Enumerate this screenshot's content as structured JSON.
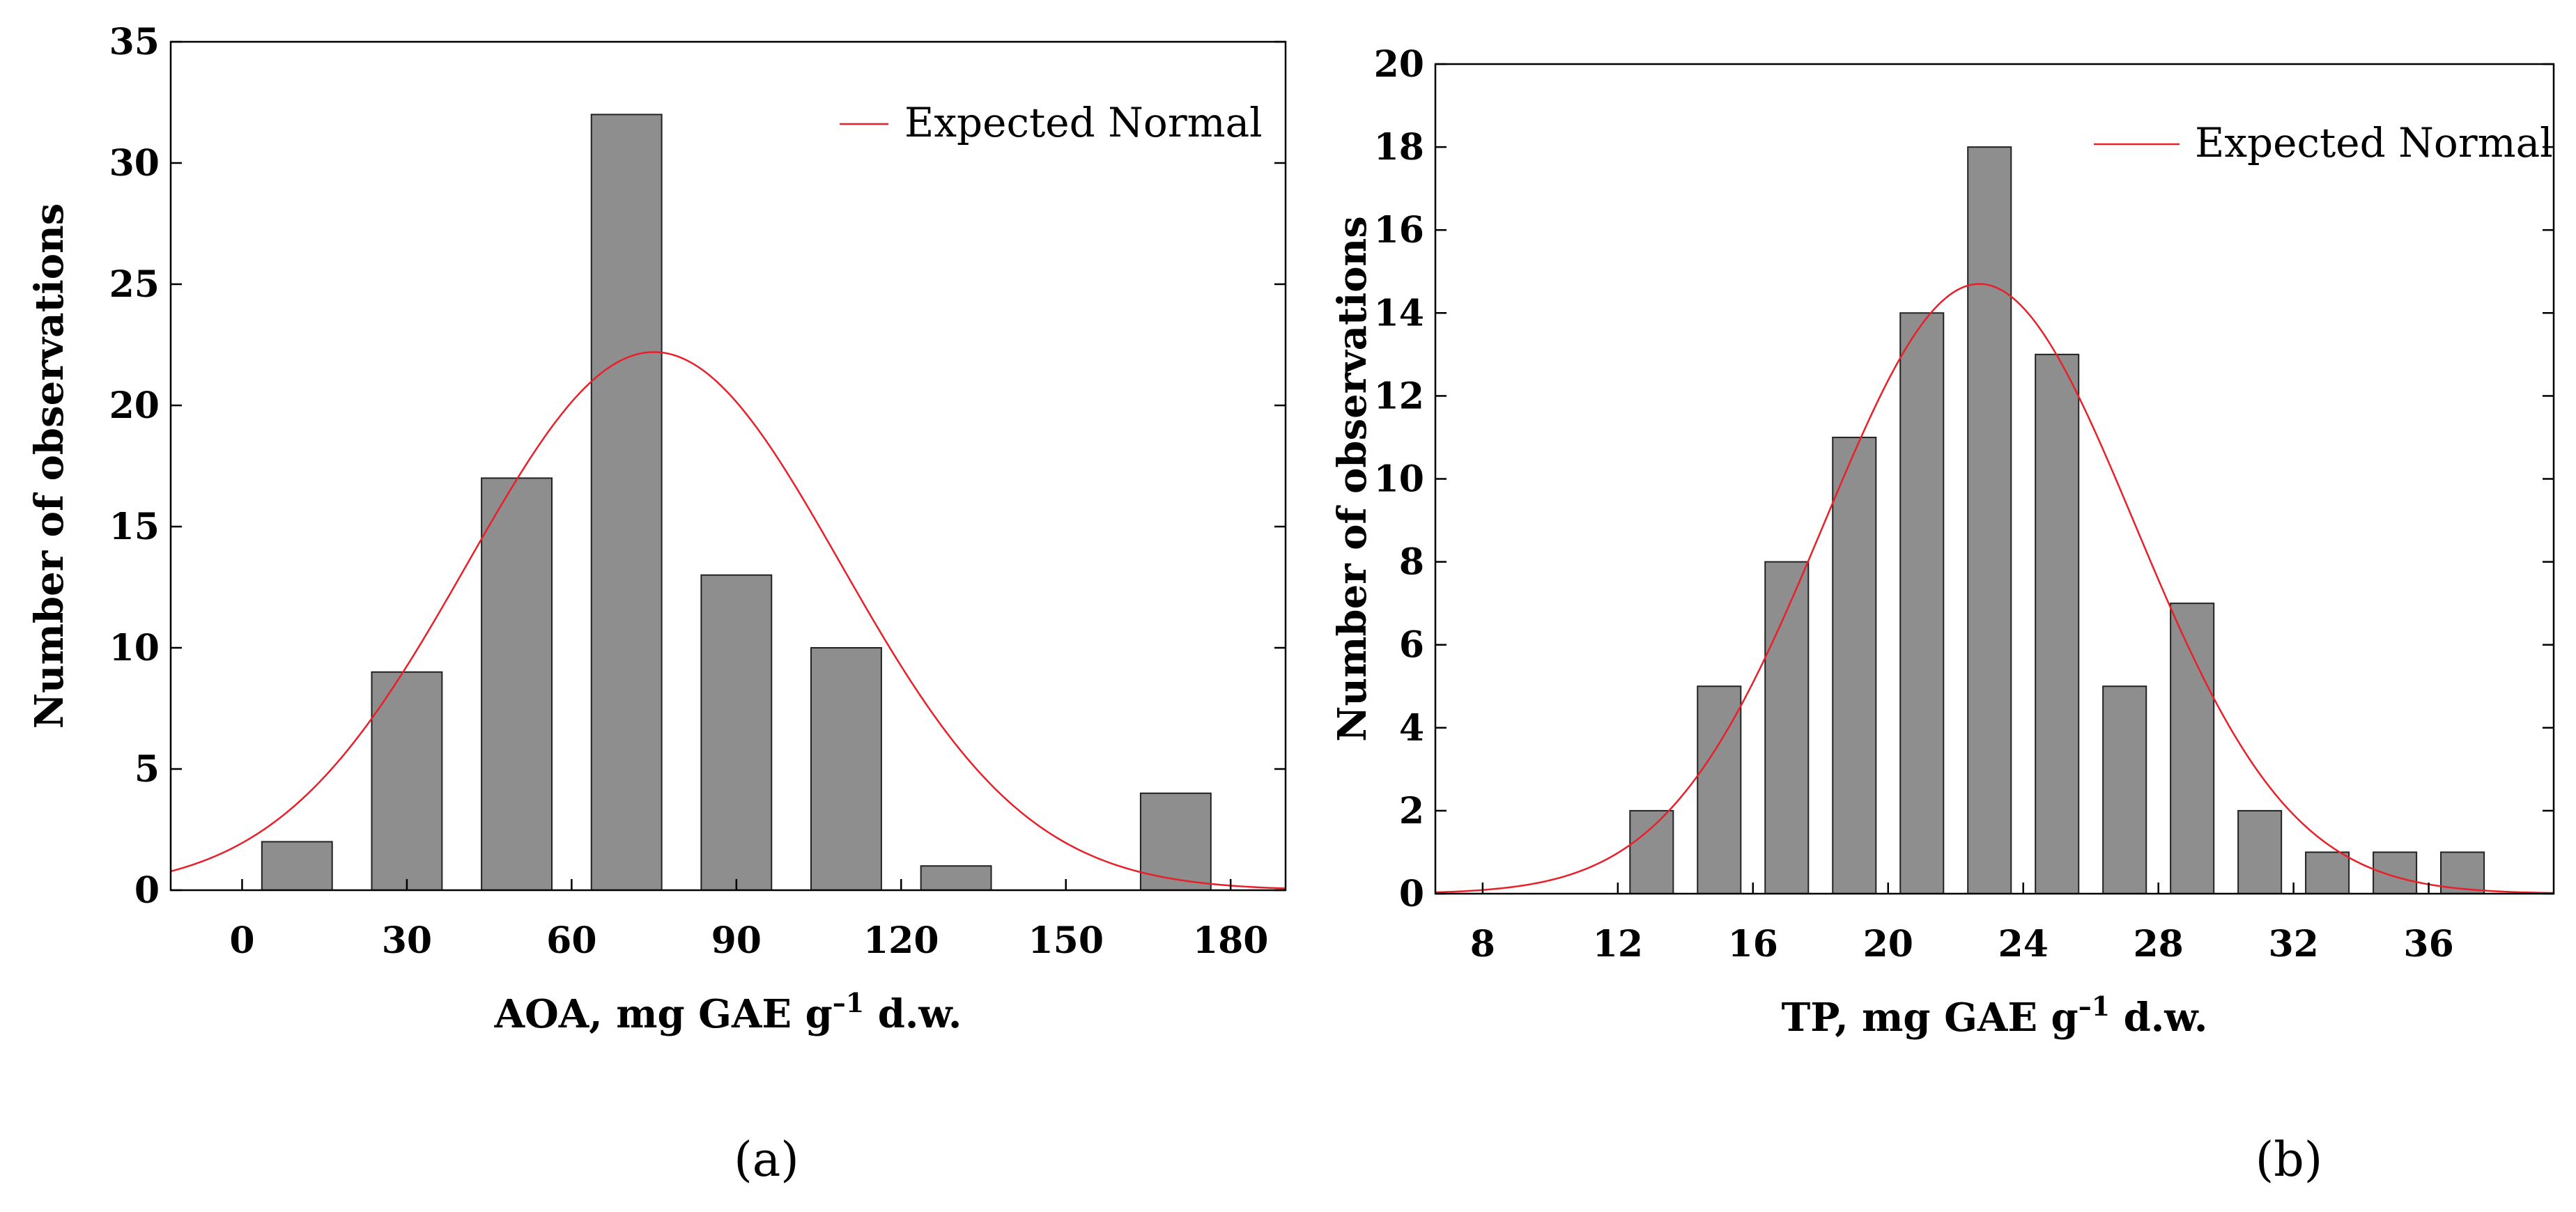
{
  "chart_data": [
    {
      "type": "bar",
      "panel_label": "(a)",
      "xlabel_main": "AOA, mg GAE g",
      "xlabel_sup": "–1",
      "xlabel_tail": " d.w.",
      "ylabel": "Number of observations",
      "legend_label": "Expected Normal",
      "xlim": [
        -13,
        190
      ],
      "ylim": [
        0,
        35
      ],
      "xticks": [
        0,
        30,
        60,
        90,
        120,
        150,
        180
      ],
      "yticks": [
        0,
        5,
        10,
        15,
        20,
        25,
        30,
        35
      ],
      "bin_width": 20,
      "bins": [
        {
          "center": 10,
          "value": 2
        },
        {
          "center": 30,
          "value": 9
        },
        {
          "center": 50,
          "value": 17
        },
        {
          "center": 70,
          "value": 32
        },
        {
          "center": 90,
          "value": 13
        },
        {
          "center": 110,
          "value": 10
        },
        {
          "center": 130,
          "value": 1
        },
        {
          "center": 150,
          "value": 0
        },
        {
          "center": 170,
          "value": 4
        }
      ],
      "normal": {
        "mean": 75,
        "sd": 34,
        "peak": 22.2
      }
    },
    {
      "type": "bar",
      "panel_label": "(b)",
      "xlabel_main": "TP, mg GAE g",
      "xlabel_sup": "–1",
      "xlabel_tail": " d.w.",
      "ylabel": "Number of observations",
      "legend_label": "Expected Normal",
      "xlim": [
        6.6,
        39.7
      ],
      "ylim": [
        0,
        20
      ],
      "xticks": [
        8,
        12,
        16,
        20,
        24,
        28,
        32,
        36
      ],
      "yticks": [
        0,
        2,
        4,
        6,
        8,
        10,
        12,
        14,
        16,
        18,
        20
      ],
      "bin_width": 2,
      "bins": [
        {
          "center": 13,
          "value": 2
        },
        {
          "center": 15,
          "value": 5
        },
        {
          "center": 17,
          "value": 8
        },
        {
          "center": 19,
          "value": 11
        },
        {
          "center": 21,
          "value": 14
        },
        {
          "center": 23,
          "value": 18
        },
        {
          "center": 25,
          "value": 13
        },
        {
          "center": 27,
          "value": 5
        },
        {
          "center": 29,
          "value": 7
        },
        {
          "center": 31,
          "value": 2
        },
        {
          "center": 33,
          "value": 1
        },
        {
          "center": 35,
          "value": 1
        },
        {
          "center": 37,
          "value": 1
        }
      ],
      "normal": {
        "mean": 22.7,
        "sd": 4.6,
        "peak": 14.7
      }
    }
  ],
  "colors": {
    "bar_fill": "#8e8e8e",
    "bar_stroke": "#222222",
    "curve": "#e8202a"
  }
}
